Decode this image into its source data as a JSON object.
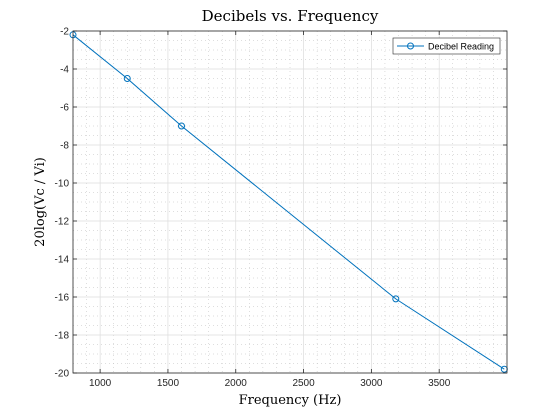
{
  "chart_data": {
    "type": "line",
    "title": "Decibels vs. Frequency",
    "xlabel": "Frequency (Hz)",
    "ylabel": "20log(Vc / Vi)",
    "xlim": [
      800,
      4000
    ],
    "ylim": [
      -20,
      -2
    ],
    "xticks": [
      1000,
      1500,
      2000,
      2500,
      3000,
      3500
    ],
    "yticks": [
      -20,
      -18,
      -16,
      -14,
      -12,
      -10,
      -8,
      -6,
      -4,
      -2
    ],
    "grid": true,
    "minor_grid": true,
    "legend_position": "top-right",
    "series": [
      {
        "name": "Decibel Reading",
        "color": "#0072BD",
        "marker": "circle",
        "x": [
          800,
          1200,
          1600,
          3180,
          3980
        ],
        "y": [
          -2.2,
          -4.5,
          -7.0,
          -16.1,
          -19.8
        ]
      }
    ]
  }
}
